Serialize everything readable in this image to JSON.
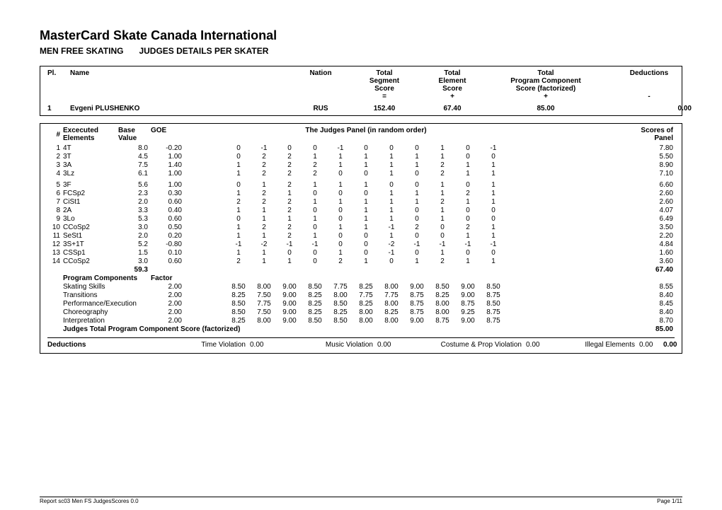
{
  "event": {
    "title": "MasterCard Skate Canada International",
    "segment_left": "MEN FREE SKATING",
    "segment_right": "JUDGES DETAILS PER SKATER"
  },
  "header": {
    "pl": "Pl.",
    "name": "Name",
    "nation": "Nation",
    "tss1": "Total",
    "tss2": "Segment",
    "tss3": "Score",
    "tss4": "=",
    "tes1": "Total",
    "tes2": "Element",
    "tes3": "Score",
    "tes4": "+",
    "pcs1": "Total",
    "pcs2": "Program Component",
    "pcs3": "Score (factorized)",
    "pcs4": "+",
    "ded": "Deductions",
    "dedminus": "-"
  },
  "skater": {
    "place": "1",
    "name": "Evgeni PLUSHENKO",
    "nation": "RUS",
    "tss": "152.40",
    "tes": "67.40",
    "pcs": "85.00",
    "ded": "0.00"
  },
  "elemHeader": {
    "num": "#",
    "exec1": "Excecuted",
    "exec2": "Elements",
    "bv1": "Base",
    "bv2": "Value",
    "goe": "GOE",
    "panel": "The Judges Panel (in random order)",
    "sop1": "Scores of",
    "sop2": "Panel"
  },
  "elements": [
    {
      "n": "1",
      "el": "4T",
      "bv": "8.0",
      "goe": "-0.20",
      "j": [
        "0",
        "-1",
        "0",
        "0",
        "-1",
        "0",
        "0",
        "0",
        "1",
        "0",
        "-1"
      ],
      "sop": "7.80"
    },
    {
      "n": "2",
      "el": "3T",
      "bv": "4.5",
      "goe": "1.00",
      "j": [
        "0",
        "2",
        "2",
        "1",
        "1",
        "1",
        "1",
        "1",
        "1",
        "0",
        "0"
      ],
      "sop": "5.50"
    },
    {
      "n": "3",
      "el": "3A",
      "bv": "7.5",
      "goe": "1.40",
      "j": [
        "1",
        "2",
        "2",
        "2",
        "1",
        "1",
        "1",
        "1",
        "2",
        "1",
        "1"
      ],
      "sop": "8.90"
    },
    {
      "n": "4",
      "el": "3Lz",
      "bv": "6.1",
      "goe": "1.00",
      "j": [
        "1",
        "2",
        "2",
        "2",
        "0",
        "0",
        "1",
        "0",
        "2",
        "1",
        "1"
      ],
      "sop": "7.10"
    },
    {
      "n": "5",
      "el": "3F",
      "bv": "5.6",
      "goe": "1.00",
      "j": [
        "0",
        "1",
        "2",
        "1",
        "1",
        "1",
        "0",
        "0",
        "1",
        "0",
        "1"
      ],
      "sop": "6.60"
    },
    {
      "n": "6",
      "el": "FCSp2",
      "bv": "2.3",
      "goe": "0.30",
      "j": [
        "1",
        "2",
        "1",
        "0",
        "0",
        "0",
        "1",
        "1",
        "1",
        "2",
        "1"
      ],
      "sop": "2.60"
    },
    {
      "n": "7",
      "el": "CiSt1",
      "bv": "2.0",
      "goe": "0.60",
      "j": [
        "2",
        "2",
        "2",
        "1",
        "1",
        "1",
        "1",
        "1",
        "2",
        "1",
        "1"
      ],
      "sop": "2.60"
    },
    {
      "n": "8",
      "el": "2A",
      "bv": "3.3",
      "goe": "0.40",
      "j": [
        "1",
        "1",
        "2",
        "0",
        "0",
        "1",
        "1",
        "0",
        "1",
        "0",
        "0"
      ],
      "sop": "4.07"
    },
    {
      "n": "9",
      "el": "3Lo",
      "bv": "5.3",
      "goe": "0.60",
      "j": [
        "0",
        "1",
        "1",
        "1",
        "0",
        "1",
        "1",
        "0",
        "1",
        "0",
        "0"
      ],
      "sop": "6.49"
    },
    {
      "n": "10",
      "el": "CCoSp2",
      "bv": "3.0",
      "goe": "0.50",
      "j": [
        "1",
        "2",
        "2",
        "0",
        "1",
        "1",
        "-1",
        "2",
        "0",
        "2",
        "1"
      ],
      "sop": "3.50"
    },
    {
      "n": "11",
      "el": "SeSt1",
      "bv": "2.0",
      "goe": "0.20",
      "j": [
        "1",
        "1",
        "2",
        "1",
        "0",
        "0",
        "1",
        "0",
        "0",
        "1",
        "1"
      ],
      "sop": "2.20"
    },
    {
      "n": "12",
      "el": "3S+1T",
      "bv": "5.2",
      "goe": "-0.80",
      "j": [
        "-1",
        "-2",
        "-1",
        "-1",
        "0",
        "0",
        "-2",
        "-1",
        "-1",
        "-1",
        "-1"
      ],
      "sop": "4.84"
    },
    {
      "n": "13",
      "el": "CSSp1",
      "bv": "1.5",
      "goe": "0.10",
      "j": [
        "1",
        "1",
        "0",
        "0",
        "1",
        "0",
        "-1",
        "0",
        "1",
        "0",
        "0"
      ],
      "sop": "1.60"
    },
    {
      "n": "14",
      "el": "CCoSp2",
      "bv": "3.0",
      "goe": "0.60",
      "j": [
        "2",
        "1",
        "1",
        "0",
        "2",
        "1",
        "0",
        "1",
        "2",
        "1",
        "1"
      ],
      "sop": "3.60"
    }
  ],
  "totals": {
    "bv": "59.3",
    "sop": "67.40"
  },
  "pcHeader": {
    "title": "Program Components",
    "factor": "Factor"
  },
  "pcs": [
    {
      "name": "Skating Skills",
      "f": "2.00",
      "j": [
        "8.50",
        "8.00",
        "9.00",
        "8.50",
        "7.75",
        "8.25",
        "8.00",
        "9.00",
        "8.50",
        "9.00",
        "8.50"
      ],
      "sop": "8.55"
    },
    {
      "name": "Transitions",
      "f": "2.00",
      "j": [
        "8.25",
        "7.50",
        "9.00",
        "8.25",
        "8.00",
        "7.75",
        "7.75",
        "8.75",
        "8.25",
        "9.00",
        "8.75"
      ],
      "sop": "8.40"
    },
    {
      "name": "Performance/Execution",
      "f": "2.00",
      "j": [
        "8.50",
        "7.75",
        "9.00",
        "8.25",
        "8.50",
        "8.25",
        "8.00",
        "8.75",
        "8.00",
        "8.75",
        "8.50"
      ],
      "sop": "8.45"
    },
    {
      "name": "Choreography",
      "f": "2.00",
      "j": [
        "8.50",
        "7.50",
        "9.00",
        "8.25",
        "8.25",
        "8.00",
        "8.25",
        "8.75",
        "8.00",
        "9.25",
        "8.75"
      ],
      "sop": "8.40"
    },
    {
      "name": "Interpretation",
      "f": "2.00",
      "j": [
        "8.25",
        "8.00",
        "9.00",
        "8.50",
        "8.50",
        "8.00",
        "8.00",
        "9.00",
        "8.75",
        "9.00",
        "8.75"
      ],
      "sop": "8.70"
    }
  ],
  "pcTotal": {
    "label": "Judges Total Program Component Score (factorized)",
    "value": "85.00"
  },
  "deductions": {
    "label": "Deductions",
    "items": [
      {
        "name": "Time Violation",
        "val": "0.00"
      },
      {
        "name": "Music Violation",
        "val": "0.00"
      },
      {
        "name": "Costume & Prop Violation",
        "val": "0.00"
      },
      {
        "name": "Illegal Elements",
        "val": "0.00"
      }
    ],
    "total": "0.00"
  },
  "footer": {
    "left": "Report sc03 Men FS JudgesScores 0.0",
    "right": "Page 1/11"
  }
}
